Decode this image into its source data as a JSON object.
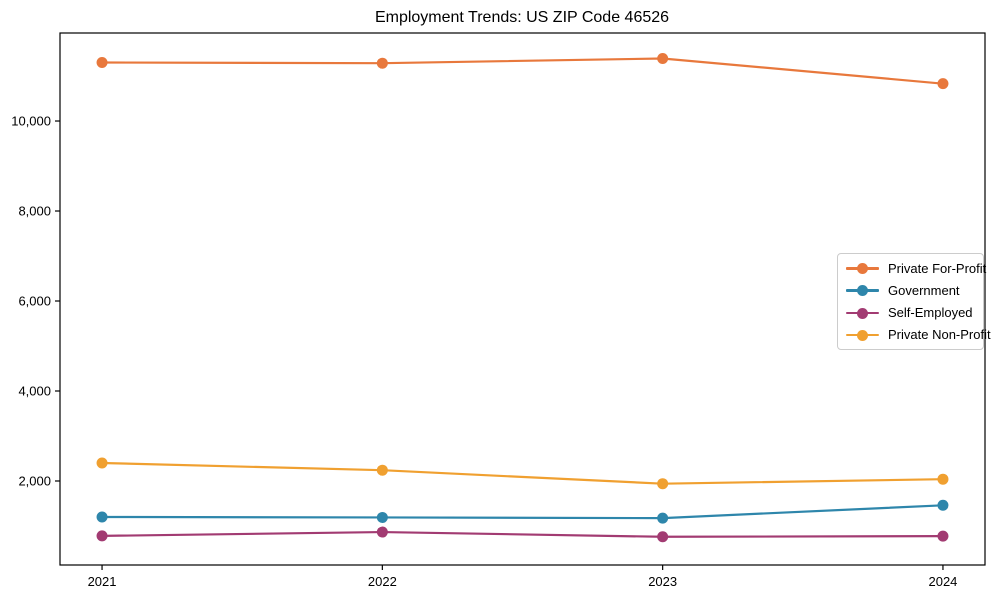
{
  "chart_data": {
    "type": "line",
    "title": "Employment Trends: US ZIP Code 46526",
    "xlabel": "",
    "ylabel": "",
    "categories": [
      "2021",
      "2022",
      "2023",
      "2024"
    ],
    "series": [
      {
        "name": "Private For-Profit",
        "color": "#E8783C",
        "values": [
          11300,
          11285,
          11390,
          10830
        ]
      },
      {
        "name": "Government",
        "color": "#2E86AB",
        "values": [
          1200,
          1190,
          1175,
          1460
        ]
      },
      {
        "name": "Self-Employed",
        "color": "#A23B72",
        "values": [
          780,
          865,
          760,
          775
        ]
      },
      {
        "name": "Private Non-Profit",
        "color": "#F0A030",
        "values": [
          2400,
          2240,
          1940,
          2040
        ]
      }
    ],
    "yticks": [
      2000,
      4000,
      6000,
      8000,
      10000
    ],
    "ytick_labels": [
      "2,000",
      "4,000",
      "6,000",
      "8,000",
      "10,000"
    ],
    "ylim": [
      133,
      11956
    ],
    "xlim": [
      -0.15,
      3.15
    ],
    "grid": false,
    "legend_position": "center right",
    "marker": "circle",
    "frame": "box"
  }
}
